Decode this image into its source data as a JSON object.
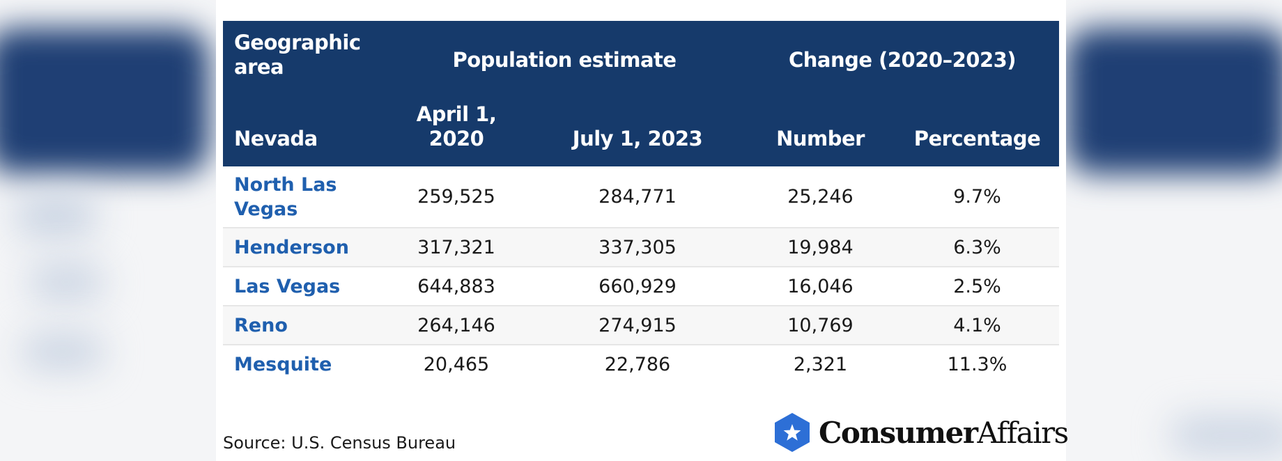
{
  "header": {
    "area_label": "Geographic area",
    "population_group": "Population estimate",
    "change_group": "Change (2020–2023)",
    "state": "Nevada",
    "col_april": "April 1, 2020",
    "col_july": "July 1, 2023",
    "col_number": "Number",
    "col_percentage": "Percentage"
  },
  "rows": [
    {
      "city": "North Las Vegas",
      "april": "259,525",
      "july": "284,771",
      "number": "25,246",
      "percentage": "9.7%"
    },
    {
      "city": "Henderson",
      "april": "317,321",
      "july": "337,305",
      "number": "19,984",
      "percentage": "6.3%"
    },
    {
      "city": "Las Vegas",
      "april": "644,883",
      "july": "660,929",
      "number": "16,046",
      "percentage": "2.5%"
    },
    {
      "city": "Reno",
      "april": "264,146",
      "july": "274,915",
      "number": "10,769",
      "percentage": "4.1%"
    },
    {
      "city": "Mesquite",
      "april": "20,465",
      "july": "22,786",
      "number": "2,321",
      "percentage": "11.3%"
    }
  ],
  "source": "Source: U.S. Census Bureau",
  "logo": {
    "brand_bold": "Consumer",
    "brand_regular": "Affairs",
    "icon": "star-hexagon-icon",
    "color": "#2d6fd6"
  },
  "colors": {
    "header_bg": "#163a6b",
    "city_text": "#1f5fae"
  }
}
